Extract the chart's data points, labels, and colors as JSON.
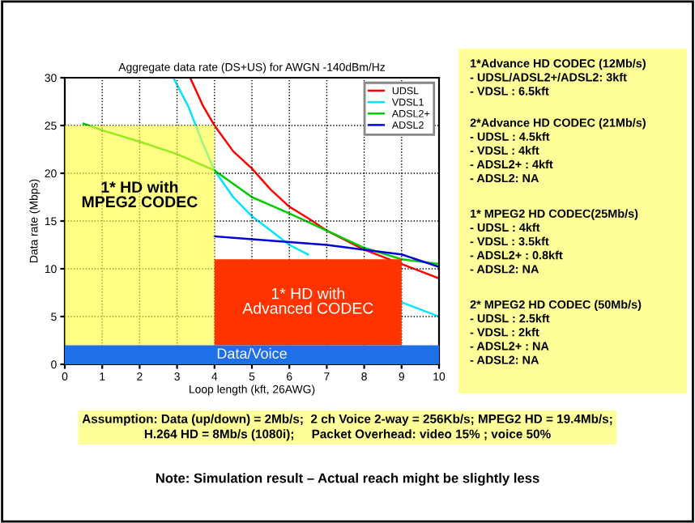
{
  "chart_data": [
    {
      "type": "line",
      "title": "Aggregate data rate (DS+US) for AWGN -140dBm/Hz",
      "xlabel": "Loop length (kft, 26AWG)",
      "ylabel": "Data rate (Mbps)",
      "xlim": [
        0,
        10
      ],
      "xticks": [
        0,
        1,
        2,
        3,
        4,
        5,
        6,
        7,
        8,
        9,
        10
      ],
      "ylim": [
        0,
        30
      ],
      "yticks": [
        0,
        5,
        10,
        15,
        20,
        25,
        30
      ],
      "grid": true,
      "legend": "top right",
      "line_style": "solid",
      "marker": "none",
      "series": [
        {
          "name": "UDSL",
          "color": "#ff0000",
          "x": [
            3.35,
            3.7,
            4,
            4.5,
            5,
            5.5,
            6,
            6.5,
            7,
            7.5,
            8,
            9,
            10
          ],
          "values": [
            30,
            27,
            25,
            22.3,
            20.5,
            18.3,
            16.5,
            15.3,
            14,
            13,
            12,
            10.5,
            9
          ]
        },
        {
          "name": "VDSL1",
          "color": "#00e5ff",
          "x": [
            2.9,
            3.3,
            3.7,
            4,
            4.5,
            5,
            5.5,
            6,
            6.5,
            7,
            8,
            9,
            10
          ],
          "values": [
            30,
            27,
            23,
            20.3,
            17.5,
            15.5,
            14,
            12.5,
            11.5,
            null,
            null,
            6.5,
            5
          ]
        },
        {
          "name": "ADSL2+",
          "color": "#00cc00",
          "x": [
            0.5,
            1,
            2,
            3,
            4,
            5,
            6,
            7,
            8,
            9,
            10
          ],
          "values": [
            25.2,
            24.5,
            23.3,
            22,
            20.3,
            17.5,
            15.8,
            14,
            12.2,
            11,
            10.5
          ]
        },
        {
          "name": "ADSL2",
          "color": "#0000dd",
          "x": [
            4,
            5,
            6,
            7,
            8,
            9,
            10
          ],
          "values": [
            13.4,
            13.1,
            12.8,
            12.5,
            12,
            11.5,
            10.2
          ]
        },
        {
          "type": "histogram",
          "bins": [
            0,
            4,
            9
          ],
          "base": [
            2,
            2
          ],
          "values": [
            23,
            9
          ],
          "colors": [
            "#ffff33",
            "#ff3300"
          ]
        }
      ],
      "bands": [
        {
          "axis": "y",
          "from": 0,
          "to": 2,
          "color": "#1f6fe8"
        }
      ],
      "annotations": [
        "1* HD with\nMPEG2 CODEC",
        "1* HD with\nAdvanced CODEC",
        "Data/Voice",
        "Assumption: Data (up/down) = 2Mb/s;  2 ch Voice 2-way = 256Kb/s; MPEG2 HD = 19.4Mb/s;\nH.264 HD = 8Mb/s (1080i);     Packet Overhead: video 15% ; voice 50%",
        "Note: Simulation result – Actual reach might be slightly less"
      ]
    },
    {
      "type": "other",
      "annotations": [
        "1*Advance HD CODEC (12Mb/s)\n- UDSL/ADSL2+/ADSL2: 3kft\n- VDSL : 6.5kft",
        "2*Advance HD CODEC (21Mb/s)\n- UDSL : 4.5kft\n- VDSL : 4kft\n- ADSL2+ : 4kft\n- ADSL2: NA",
        "1* MPEG2 HD CODEC(25Mb/s)\n- UDSL : 4kft\n- VDSL : 3.5kft\n- ADSL2+ : 0.8kft\n- ADSL2: NA",
        "2* MPEG2 HD CODEC (50Mb/s)\n- UDSL : 2.5kft\n- VDSL : 2kft\n- ADSL2+ : NA\n- ADSL2: NA"
      ]
    }
  ]
}
